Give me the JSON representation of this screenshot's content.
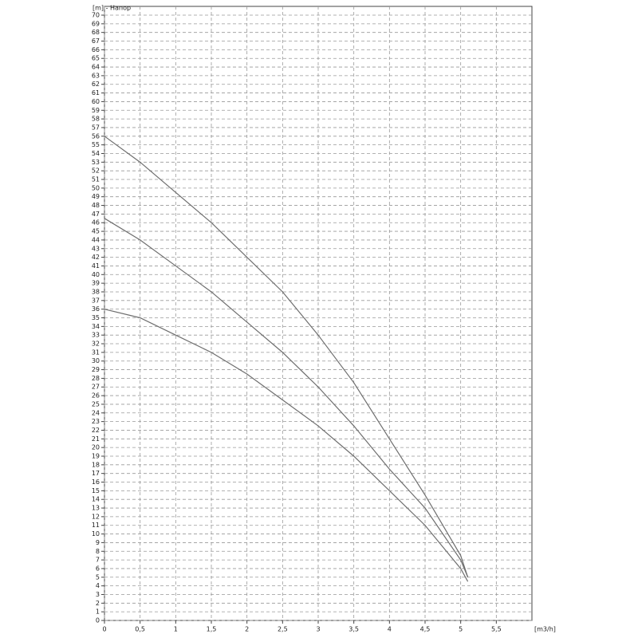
{
  "chart_data": {
    "type": "line",
    "y_label": "[m] - Напор",
    "x_label": "[m3/h]",
    "x": [
      0,
      0.5,
      1,
      1.5,
      2,
      2.5,
      3,
      3.5,
      4,
      4.5,
      5,
      5.1
    ],
    "series": [
      {
        "color": "#6e6e6e",
        "values": [
          56,
          53,
          49.5,
          46,
          42,
          38,
          33,
          27.5,
          21,
          14.5,
          7.5,
          5
        ]
      },
      {
        "color": "#6e6e6e",
        "values": [
          46.5,
          44,
          41,
          38,
          34.5,
          31,
          27,
          22.5,
          17.5,
          13,
          7,
          5
        ]
      },
      {
        "color": "#6e6e6e",
        "values": [
          36,
          35,
          33,
          31,
          28.5,
          25.5,
          22.5,
          19,
          15,
          11,
          6,
          4.5
        ]
      }
    ],
    "xlim": [
      0,
      6
    ],
    "xticks": [
      0,
      {
        "value": 0.5,
        "label": "0,5"
      },
      1,
      {
        "value": 1.5,
        "label": "1,5"
      },
      2,
      {
        "value": 2.5,
        "label": "2,5"
      },
      3,
      {
        "value": 3.5,
        "label": "3,5"
      },
      4,
      {
        "value": 4.5,
        "label": "4,5"
      },
      5,
      {
        "value": 5.5,
        "label": "5,5"
      }
    ],
    "ylim": [
      0,
      70
    ],
    "yticks": [
      0,
      1,
      2,
      3,
      4,
      5,
      6,
      7,
      8,
      9,
      10,
      11,
      12,
      13,
      14,
      15,
      16,
      17,
      18,
      19,
      20,
      21,
      22,
      23,
      24,
      25,
      26,
      27,
      28,
      29,
      30,
      31,
      32,
      33,
      34,
      35,
      36,
      37,
      38,
      39,
      40,
      41,
      42,
      43,
      44,
      45,
      46,
      47,
      48,
      49,
      50,
      51,
      52,
      53,
      54,
      55,
      56,
      57,
      58,
      59,
      60,
      61,
      62,
      63,
      64,
      65,
      66,
      67,
      68,
      69,
      70
    ],
    "grid": true
  }
}
